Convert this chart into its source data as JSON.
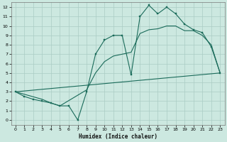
{
  "xlabel": "Humidex (Indice chaleur)",
  "bg_color": "#cce8e0",
  "grid_color": "#aaccc4",
  "line_color": "#1a6b5a",
  "xlim": [
    -0.5,
    23.5
  ],
  "ylim": [
    -0.5,
    12.5
  ],
  "xticks": [
    0,
    1,
    2,
    3,
    4,
    5,
    6,
    7,
    8,
    9,
    10,
    11,
    12,
    13,
    14,
    15,
    16,
    17,
    18,
    19,
    20,
    21,
    22,
    23
  ],
  "yticks": [
    0,
    1,
    2,
    3,
    4,
    5,
    6,
    7,
    8,
    9,
    10,
    11,
    12
  ],
  "series1_x": [
    0,
    1,
    2,
    3,
    4,
    5,
    6,
    7,
    8,
    9,
    10,
    11,
    12,
    13,
    14,
    15,
    16,
    17,
    18,
    19,
    20,
    21,
    22,
    23
  ],
  "series1_y": [
    3.0,
    2.5,
    2.2,
    2.0,
    1.8,
    1.5,
    1.5,
    0.0,
    3.0,
    7.0,
    8.5,
    9.0,
    9.0,
    4.8,
    11.0,
    12.2,
    11.3,
    12.0,
    11.3,
    10.2,
    9.6,
    9.3,
    7.8,
    5.0
  ],
  "series2_x": [
    0,
    3,
    4,
    5,
    8,
    9,
    10,
    11,
    12,
    13,
    14,
    15,
    16,
    17,
    18,
    19,
    20,
    21,
    22,
    23
  ],
  "series2_y": [
    3.0,
    2.2,
    1.8,
    1.5,
    3.2,
    5.0,
    6.2,
    6.8,
    7.0,
    7.2,
    9.2,
    9.6,
    9.7,
    10.0,
    10.0,
    9.5,
    9.5,
    9.0,
    8.0,
    5.0
  ],
  "series3_x": [
    0,
    23
  ],
  "series3_y": [
    3.0,
    5.0
  ]
}
